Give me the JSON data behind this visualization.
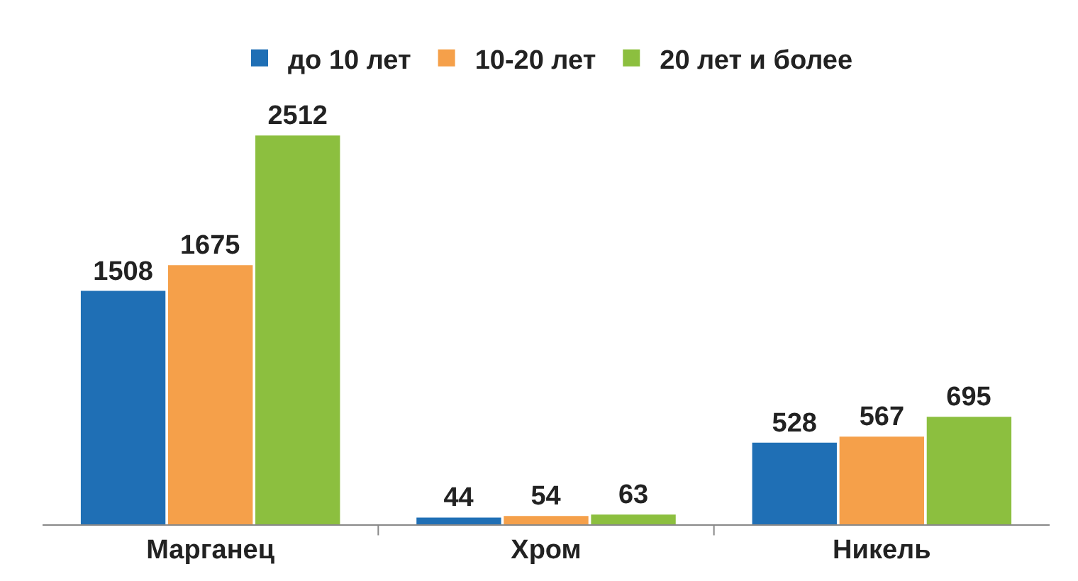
{
  "chart_data": {
    "type": "bar",
    "categories": [
      "Марганец",
      "Хром",
      "Никель"
    ],
    "series": [
      {
        "name": "до 10 лет",
        "color": "#1f6fb5",
        "values": [
          1508,
          44,
          528
        ]
      },
      {
        "name": "10-20 лет",
        "color": "#f5a04a",
        "values": [
          1675,
          54,
          567
        ]
      },
      {
        "name": "20 лет и более",
        "color": "#8cbf3f",
        "values": [
          2512,
          63,
          695
        ]
      }
    ],
    "data_labels": true,
    "legend": "top"
  }
}
